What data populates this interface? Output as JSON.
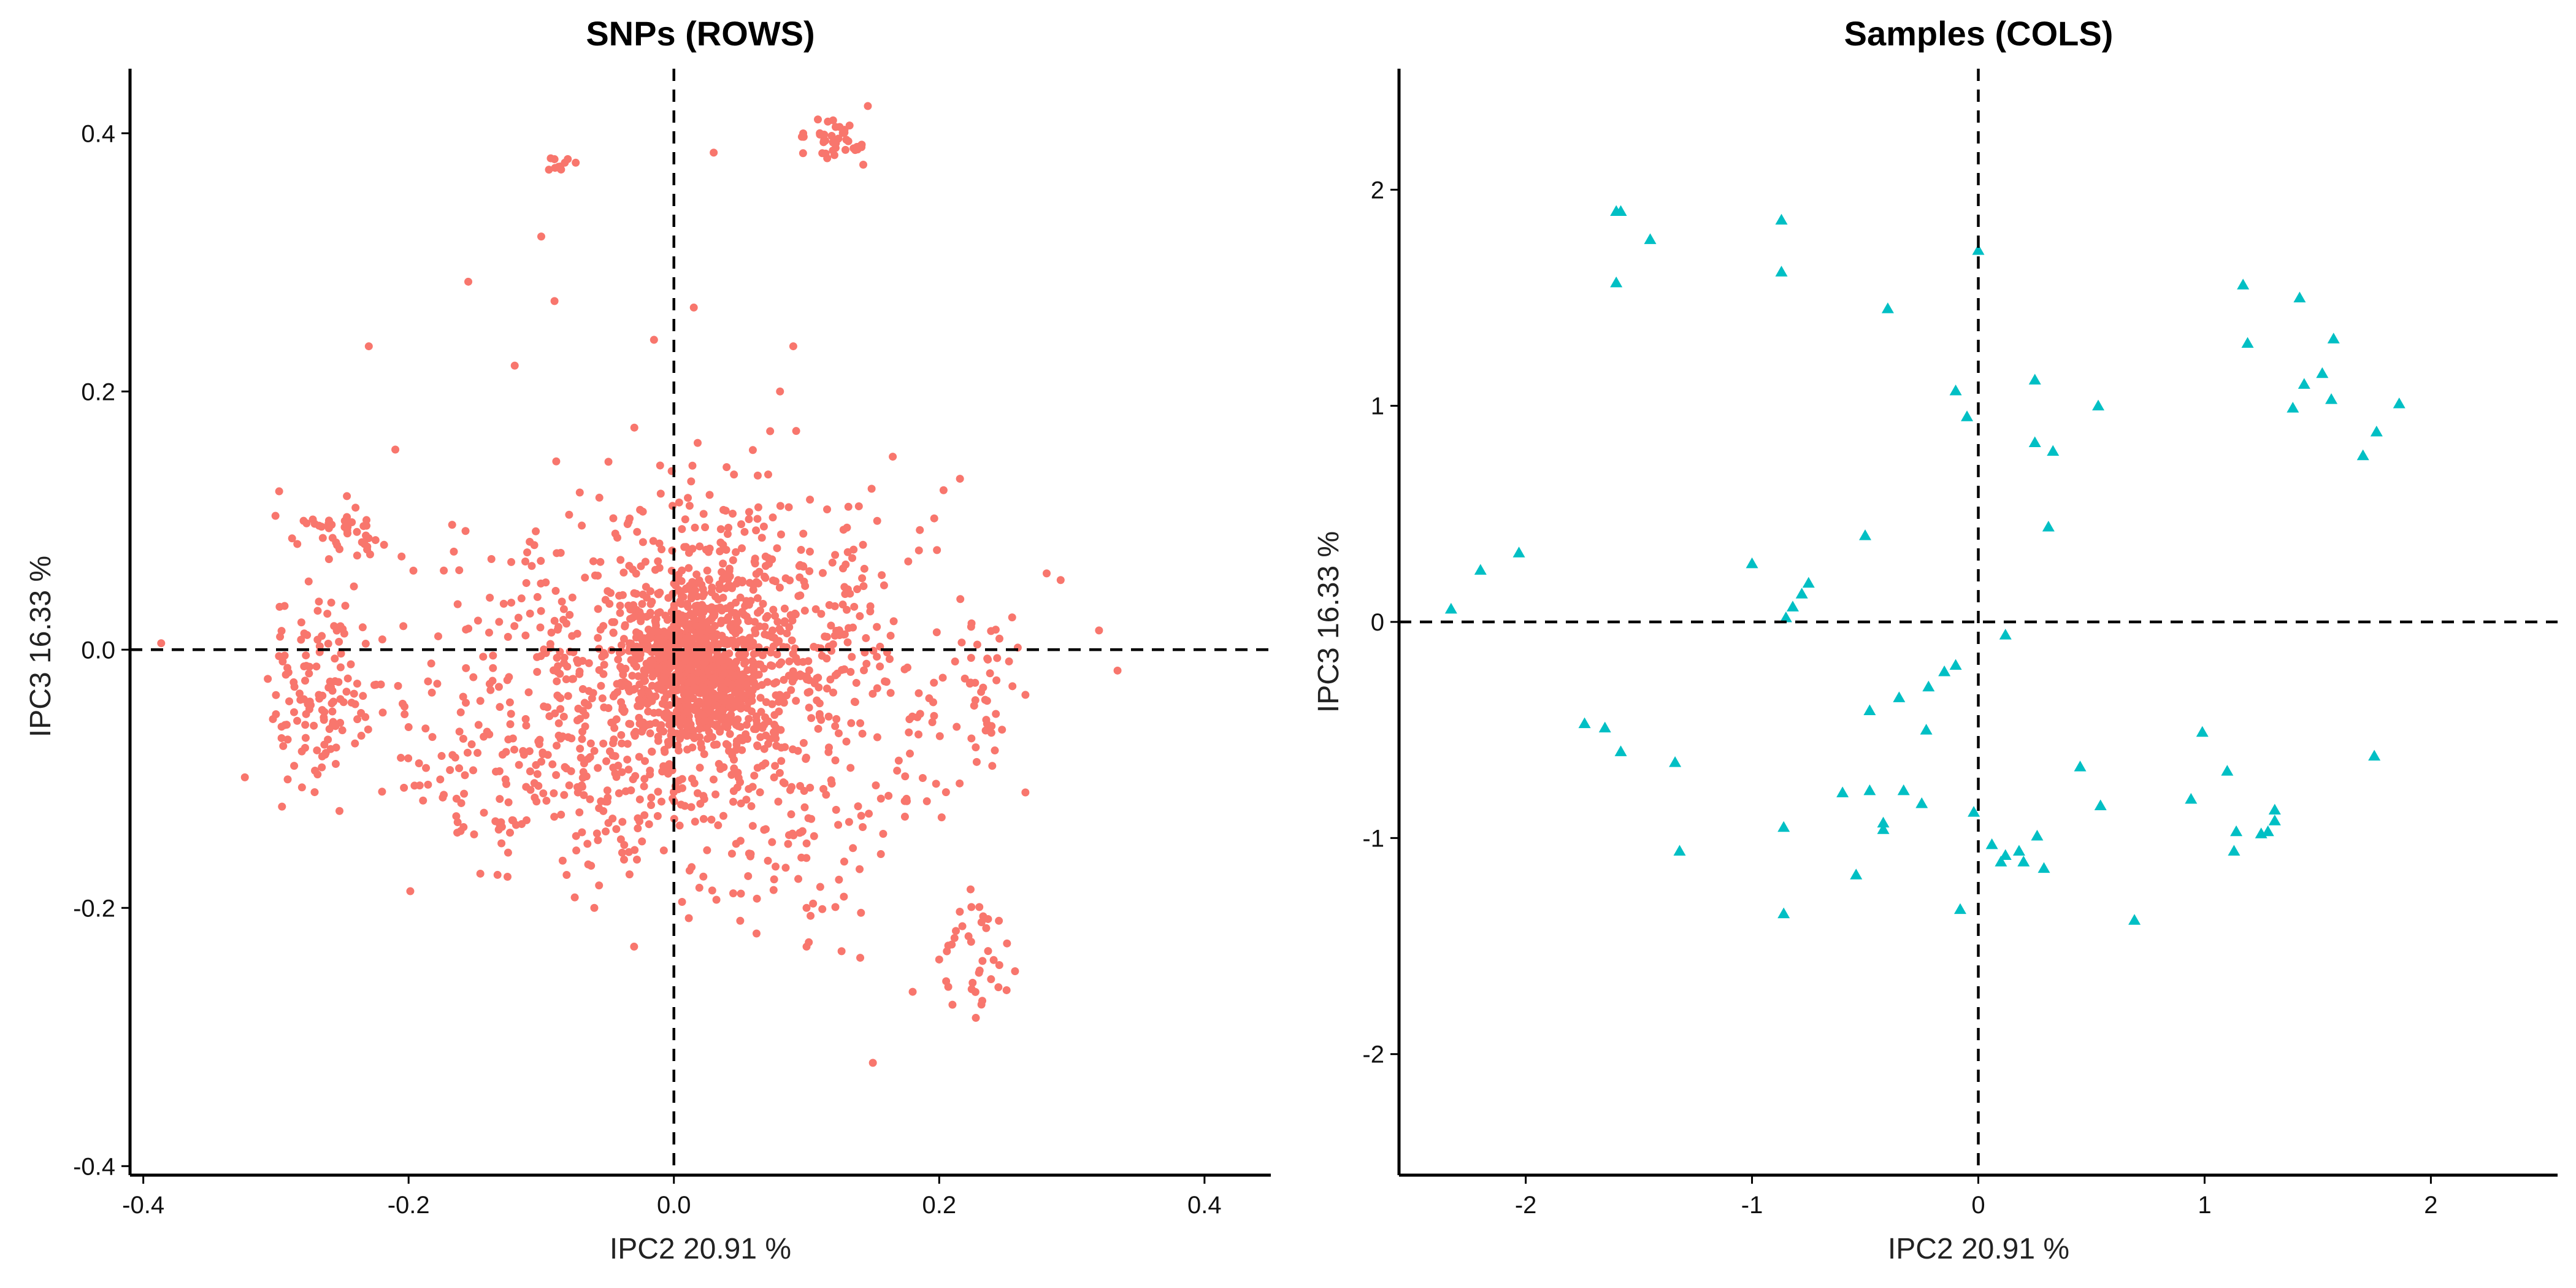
{
  "chart_data": [
    {
      "type": "scatter",
      "title": "SNPs (ROWS)",
      "xlabel": "IPC2 20.91 %",
      "ylabel": "IPC3 16.33 %",
      "xlim": [
        -0.41,
        0.45
      ],
      "ylim": [
        -0.407,
        0.45
      ],
      "xticks": [
        -0.4,
        -0.2,
        0.0,
        0.2,
        0.4
      ],
      "xtick_labels": [
        "-0.4",
        "-0.2",
        "0.0",
        "0.2",
        "0.4"
      ],
      "yticks": [
        -0.4,
        -0.2,
        0.0,
        0.2,
        0.4
      ],
      "ytick_labels": [
        "-0.4",
        "-0.2",
        "0.0",
        "0.2",
        "0.4"
      ],
      "reference_lines": {
        "x": 0,
        "y": 0,
        "style": "dashed"
      },
      "marker": "circle",
      "color": "#F8766D",
      "grid": false,
      "point_count_estimate": 2500,
      "clusters": [
        {
          "cx": 0.015,
          "cy": -0.015,
          "sx": 0.028,
          "sy": 0.028,
          "n": 700
        },
        {
          "cx": 0.03,
          "cy": 0.0,
          "sx": 0.065,
          "sy": 0.06,
          "n": 650
        },
        {
          "cx": 0.0,
          "cy": -0.02,
          "sx": 0.12,
          "sy": 0.075,
          "n": 350
        },
        {
          "cx": -0.27,
          "cy": -0.03,
          "sx": 0.02,
          "sy": 0.04,
          "n": 120
        },
        {
          "cx": -0.25,
          "cy": 0.09,
          "sx": 0.02,
          "sy": 0.015,
          "n": 40
        },
        {
          "cx": 0.23,
          "cy": -0.235,
          "sx": 0.014,
          "sy": 0.02,
          "n": 35
        },
        {
          "cx": 0.235,
          "cy": -0.03,
          "sx": 0.01,
          "sy": 0.03,
          "n": 30
        },
        {
          "cx": 0.125,
          "cy": 0.393,
          "sx": 0.012,
          "sy": 0.008,
          "n": 40
        },
        {
          "cx": -0.085,
          "cy": 0.375,
          "sx": 0.006,
          "sy": 0.006,
          "n": 10
        },
        {
          "cx": -0.1,
          "cy": -0.1,
          "sx": 0.06,
          "sy": 0.04,
          "n": 150
        },
        {
          "cx": 0.08,
          "cy": -0.12,
          "sx": 0.06,
          "sy": 0.05,
          "n": 120
        }
      ],
      "points_sample": [
        [
          -0.29,
          -0.04
        ],
        [
          -0.3,
          -0.05
        ],
        [
          -0.26,
          0.1
        ],
        [
          -0.24,
          0.11
        ],
        [
          -0.23,
          0.235
        ],
        [
          -0.21,
          0.155
        ],
        [
          -0.155,
          0.285
        ],
        [
          -0.1,
          0.32
        ],
        [
          -0.09,
          0.27
        ],
        [
          -0.08,
          0.38
        ],
        [
          -0.12,
          0.22
        ],
        [
          0.03,
          0.385
        ],
        [
          0.11,
          0.4
        ],
        [
          0.12,
          0.41
        ],
        [
          0.13,
          0.395
        ],
        [
          0.09,
          0.235
        ],
        [
          0.08,
          0.2
        ],
        [
          -0.015,
          0.24
        ],
        [
          0.015,
          0.265
        ],
        [
          0.265,
          -0.035
        ],
        [
          0.24,
          -0.09
        ],
        [
          0.255,
          0.025
        ],
        [
          0.2,
          -0.24
        ],
        [
          0.18,
          -0.265
        ],
        [
          0.21,
          -0.275
        ],
        [
          0.15,
          -0.32
        ],
        [
          0.245,
          -0.21
        ],
        [
          0.14,
          -0.17
        ],
        [
          0.1,
          -0.2
        ],
        [
          -0.03,
          -0.23
        ],
        [
          -0.06,
          -0.2
        ],
        [
          -0.2,
          -0.06
        ],
        [
          -0.22,
          -0.11
        ],
        [
          -0.13,
          -0.15
        ],
        [
          0.05,
          -0.21
        ],
        [
          0.1,
          -0.23
        ]
      ]
    },
    {
      "type": "scatter",
      "title": "Samples (COLS)",
      "xlabel": "IPC2 20.91 %",
      "ylabel": "IPC3 16.33 %",
      "xlim": [
        -2.56,
        2.56
      ],
      "ylim": [
        -2.56,
        2.56
      ],
      "xticks": [
        -2,
        -1,
        0,
        1,
        2
      ],
      "xtick_labels": [
        "-2",
        "-1",
        "0",
        "1",
        "2"
      ],
      "yticks": [
        -2,
        -1,
        0,
        1,
        2
      ],
      "ytick_labels": [
        "-2",
        "-1",
        "0",
        "1",
        "2"
      ],
      "reference_lines": {
        "x": 0,
        "y": 0,
        "style": "dashed"
      },
      "marker": "triangle",
      "color": "#00BFC4",
      "grid": false,
      "points": [
        [
          -1.6,
          1.9
        ],
        [
          -1.58,
          1.9
        ],
        [
          -1.6,
          1.57
        ],
        [
          -1.45,
          1.77
        ],
        [
          -0.87,
          1.86
        ],
        [
          -0.87,
          1.62
        ],
        [
          -0.4,
          1.45
        ],
        [
          0.0,
          1.72
        ],
        [
          -0.1,
          1.07
        ],
        [
          -0.05,
          0.95
        ],
        [
          0.25,
          1.12
        ],
        [
          0.53,
          1.0
        ],
        [
          0.25,
          0.83
        ],
        [
          0.33,
          0.79
        ],
        [
          0.31,
          0.44
        ],
        [
          1.17,
          1.56
        ],
        [
          1.42,
          1.5
        ],
        [
          1.19,
          1.29
        ],
        [
          1.57,
          1.31
        ],
        [
          1.52,
          1.15
        ],
        [
          1.44,
          1.1
        ],
        [
          1.39,
          0.99
        ],
        [
          1.56,
          1.03
        ],
        [
          1.86,
          1.01
        ],
        [
          1.76,
          0.88
        ],
        [
          1.7,
          0.77
        ],
        [
          -2.33,
          0.06
        ],
        [
          -2.2,
          0.24
        ],
        [
          -2.03,
          0.32
        ],
        [
          -1.0,
          0.27
        ],
        [
          -0.5,
          0.4
        ],
        [
          -0.75,
          0.18
        ],
        [
          -0.78,
          0.13
        ],
        [
          -0.82,
          0.07
        ],
        [
          -0.85,
          0.02
        ],
        [
          0.12,
          -0.06
        ],
        [
          -0.1,
          -0.2
        ],
        [
          -0.15,
          -0.23
        ],
        [
          -0.22,
          -0.3
        ],
        [
          -0.35,
          -0.35
        ],
        [
          -0.48,
          -0.41
        ],
        [
          -0.23,
          -0.5
        ],
        [
          -1.74,
          -0.47
        ],
        [
          -1.65,
          -0.49
        ],
        [
          -1.58,
          -0.6
        ],
        [
          -1.34,
          -0.65
        ],
        [
          -0.33,
          -0.78
        ],
        [
          -0.25,
          -0.84
        ],
        [
          -0.48,
          -0.78
        ],
        [
          -0.6,
          -0.79
        ],
        [
          -0.42,
          -0.93
        ],
        [
          -0.42,
          -0.96
        ],
        [
          -0.86,
          -0.95
        ],
        [
          -0.02,
          -0.88
        ],
        [
          -1.32,
          -1.06
        ],
        [
          -0.54,
          -1.17
        ],
        [
          -0.86,
          -1.35
        ],
        [
          -0.08,
          -1.33
        ],
        [
          0.06,
          -1.03
        ],
        [
          0.12,
          -1.08
        ],
        [
          0.18,
          -1.06
        ],
        [
          0.2,
          -1.11
        ],
        [
          0.1,
          -1.11
        ],
        [
          0.26,
          -0.99
        ],
        [
          0.29,
          -1.14
        ],
        [
          0.45,
          -0.67
        ],
        [
          0.54,
          -0.85
        ],
        [
          0.69,
          -1.38
        ],
        [
          0.99,
          -0.51
        ],
        [
          1.1,
          -0.69
        ],
        [
          0.94,
          -0.82
        ],
        [
          1.14,
          -0.97
        ],
        [
          1.13,
          -1.06
        ],
        [
          1.25,
          -0.98
        ],
        [
          1.28,
          -0.97
        ],
        [
          1.31,
          -0.92
        ],
        [
          1.31,
          -0.87
        ],
        [
          1.75,
          -0.62
        ]
      ]
    }
  ]
}
